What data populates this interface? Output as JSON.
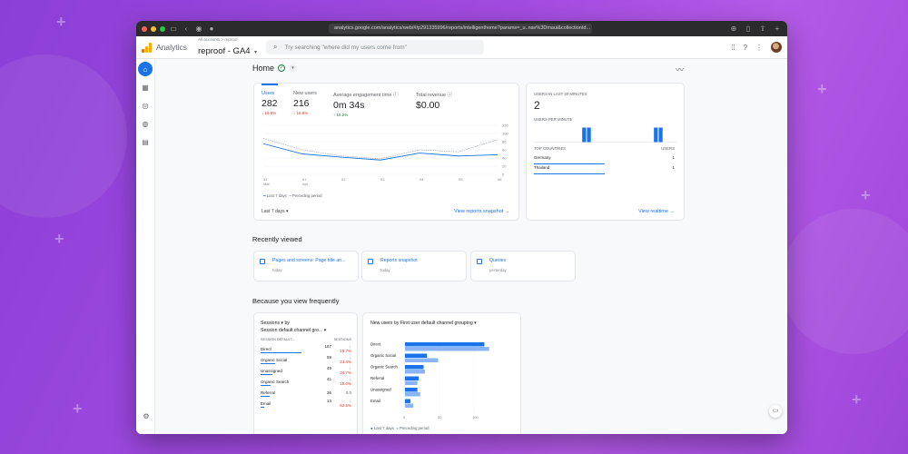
{
  "browser": {
    "url": "analytics.google.com/analytics/web/#/p291335996/reports/intelligenthome?params=_u..nav%3Dmaui&collectionId..."
  },
  "app": {
    "name": "Analytics",
    "account_crumb": "All accounts > reproof",
    "property": "reproof - GA4",
    "search_placeholder": "Try searching \"where did my users come from\""
  },
  "page": {
    "title": "Home"
  },
  "overview": {
    "metrics": [
      {
        "label": "Users",
        "value": "282",
        "delta": "↓ 16.6%",
        "dir": "down"
      },
      {
        "label": "New users",
        "value": "216",
        "delta": "↓ 16.6%",
        "dir": "down"
      },
      {
        "label": "Average engagement time",
        "value": "0m 34s",
        "delta": "↑ 18.2%",
        "dir": "up"
      },
      {
        "label": "Total revenue",
        "value": "$0.00",
        "delta": "",
        "dir": ""
      }
    ],
    "legend_current": "Last 7 days",
    "legend_previous": "Preceding period",
    "date_range": "Last 7 days",
    "link": "View reports snapshot"
  },
  "chart_data": [
    {
      "type": "line",
      "categories": [
        "31 Mar",
        "01 Apr",
        "02",
        "03",
        "04",
        "05",
        "06"
      ],
      "series": [
        {
          "name": "Last 7 days",
          "values": [
            75,
            50,
            42,
            35,
            52,
            45,
            48
          ]
        },
        {
          "name": "Preceding period",
          "values": [
            88,
            60,
            45,
            38,
            60,
            55,
            85
          ]
        }
      ],
      "ylim": [
        0,
        120
      ],
      "yticks": [
        0,
        20,
        40,
        60,
        80,
        100,
        120
      ]
    },
    {
      "type": "bar",
      "title": "New users by First user default channel grouping",
      "categories": [
        "Direct",
        "Organic Social",
        "Organic Search",
        "Referral",
        "Unassigned",
        "Email"
      ],
      "series": [
        {
          "name": "Last 7 days",
          "values": [
            115,
            32,
            27,
            20,
            18,
            8
          ]
        },
        {
          "name": "Preceding period",
          "values": [
            122,
            48,
            29,
            18,
            22,
            12
          ]
        }
      ],
      "xlim": [
        0,
        150
      ],
      "xticks": [
        0,
        50,
        100
      ]
    }
  ],
  "realtime": {
    "title": "Users in last 30 minutes",
    "value": "2",
    "per_minute_label": "Users per minute",
    "spark": [
      0,
      0,
      0,
      0,
      0,
      0,
      0,
      0,
      0,
      0,
      1,
      1,
      0,
      0,
      0,
      0,
      0,
      0,
      0,
      0,
      0,
      0,
      0,
      0,
      0,
      1,
      1,
      0,
      0,
      0
    ],
    "top_countries_label": "Top countries",
    "users_label": "Users",
    "countries": [
      {
        "name": "Germany",
        "value": "1",
        "share": 1.0
      },
      {
        "name": "Thailand",
        "value": "1",
        "share": 1.0
      }
    ],
    "link": "View realtime"
  },
  "recently_viewed": {
    "title": "Recently viewed",
    "items": [
      {
        "title": "Pages and screens: Page title an...",
        "sub": "today"
      },
      {
        "title": "Reports snapshot",
        "sub": "today"
      },
      {
        "title": "Queries",
        "sub": "yesterday"
      }
    ]
  },
  "frequent": {
    "title": "Because you view frequently",
    "sessions_card": {
      "title_line1": "Sessions ▾  by",
      "title_line2": "Session default channel gro... ▾",
      "col1": "SESSION DEFAULT...",
      "col2": "SESSIONS",
      "rows": [
        {
          "name": "Direct",
          "value": "167",
          "delta": "↓ 19.7%",
          "share": 1.0
        },
        {
          "name": "Organic Social",
          "value": "59",
          "delta": "↓ 23.4%",
          "share": 0.35
        },
        {
          "name": "Unassigned",
          "value": "49",
          "delta": "↓ 34.7%",
          "share": 0.29
        },
        {
          "name": "Organic Search",
          "value": "41",
          "delta": "↓ 18.0%",
          "share": 0.25
        },
        {
          "name": "Referral",
          "value": "36",
          "delta": "0.0",
          "share": 0.22
        },
        {
          "name": "Email",
          "value": "13",
          "delta": "↓ 62.5%",
          "share": 0.08
        }
      ]
    },
    "channel_card_title": "New users by First user default channel grouping ▾"
  },
  "colors": {
    "accent": "#1a73e8",
    "accent_light": "#8ab4f8",
    "negative": "#d93025",
    "positive": "#188038"
  }
}
